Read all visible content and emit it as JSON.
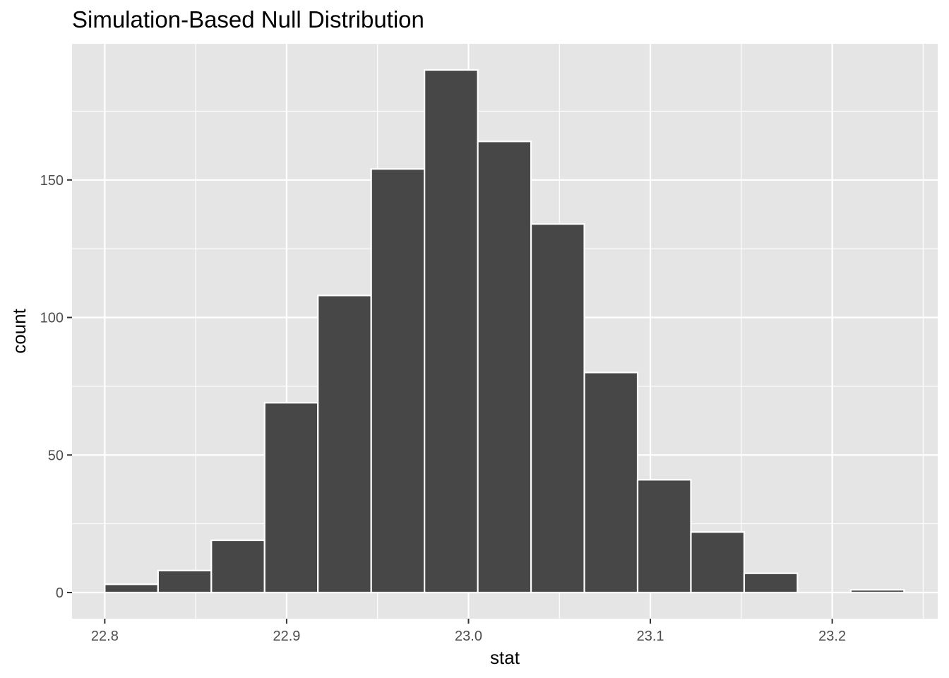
{
  "chart_data": {
    "type": "bar",
    "title": "Simulation-Based Null Distribution",
    "xlabel": "stat",
    "ylabel": "count",
    "x_ticks": [
      "22.8",
      "22.9",
      "23.0",
      "23.1",
      "23.2"
    ],
    "y_ticks": [
      "0",
      "50",
      "100",
      "150"
    ],
    "xlim": [
      22.782,
      23.258
    ],
    "ylim": [
      -9.5,
      199.5
    ],
    "bin_edges": [
      22.8,
      22.8293,
      22.8586,
      22.8879,
      22.9172,
      22.9465,
      22.9758,
      23.0051,
      23.0344,
      23.0637,
      23.093,
      23.1223,
      23.1516,
      23.1809,
      23.2102,
      23.2395
    ],
    "values": [
      3,
      8,
      19,
      69,
      108,
      154,
      190,
      164,
      134,
      80,
      41,
      22,
      7,
      0,
      1
    ],
    "grid": true,
    "colors": {
      "panel_background": "#e5e5e5",
      "gridline": "#ffffff",
      "bar_fill": "#474747",
      "bar_border": "#ffffff"
    }
  }
}
